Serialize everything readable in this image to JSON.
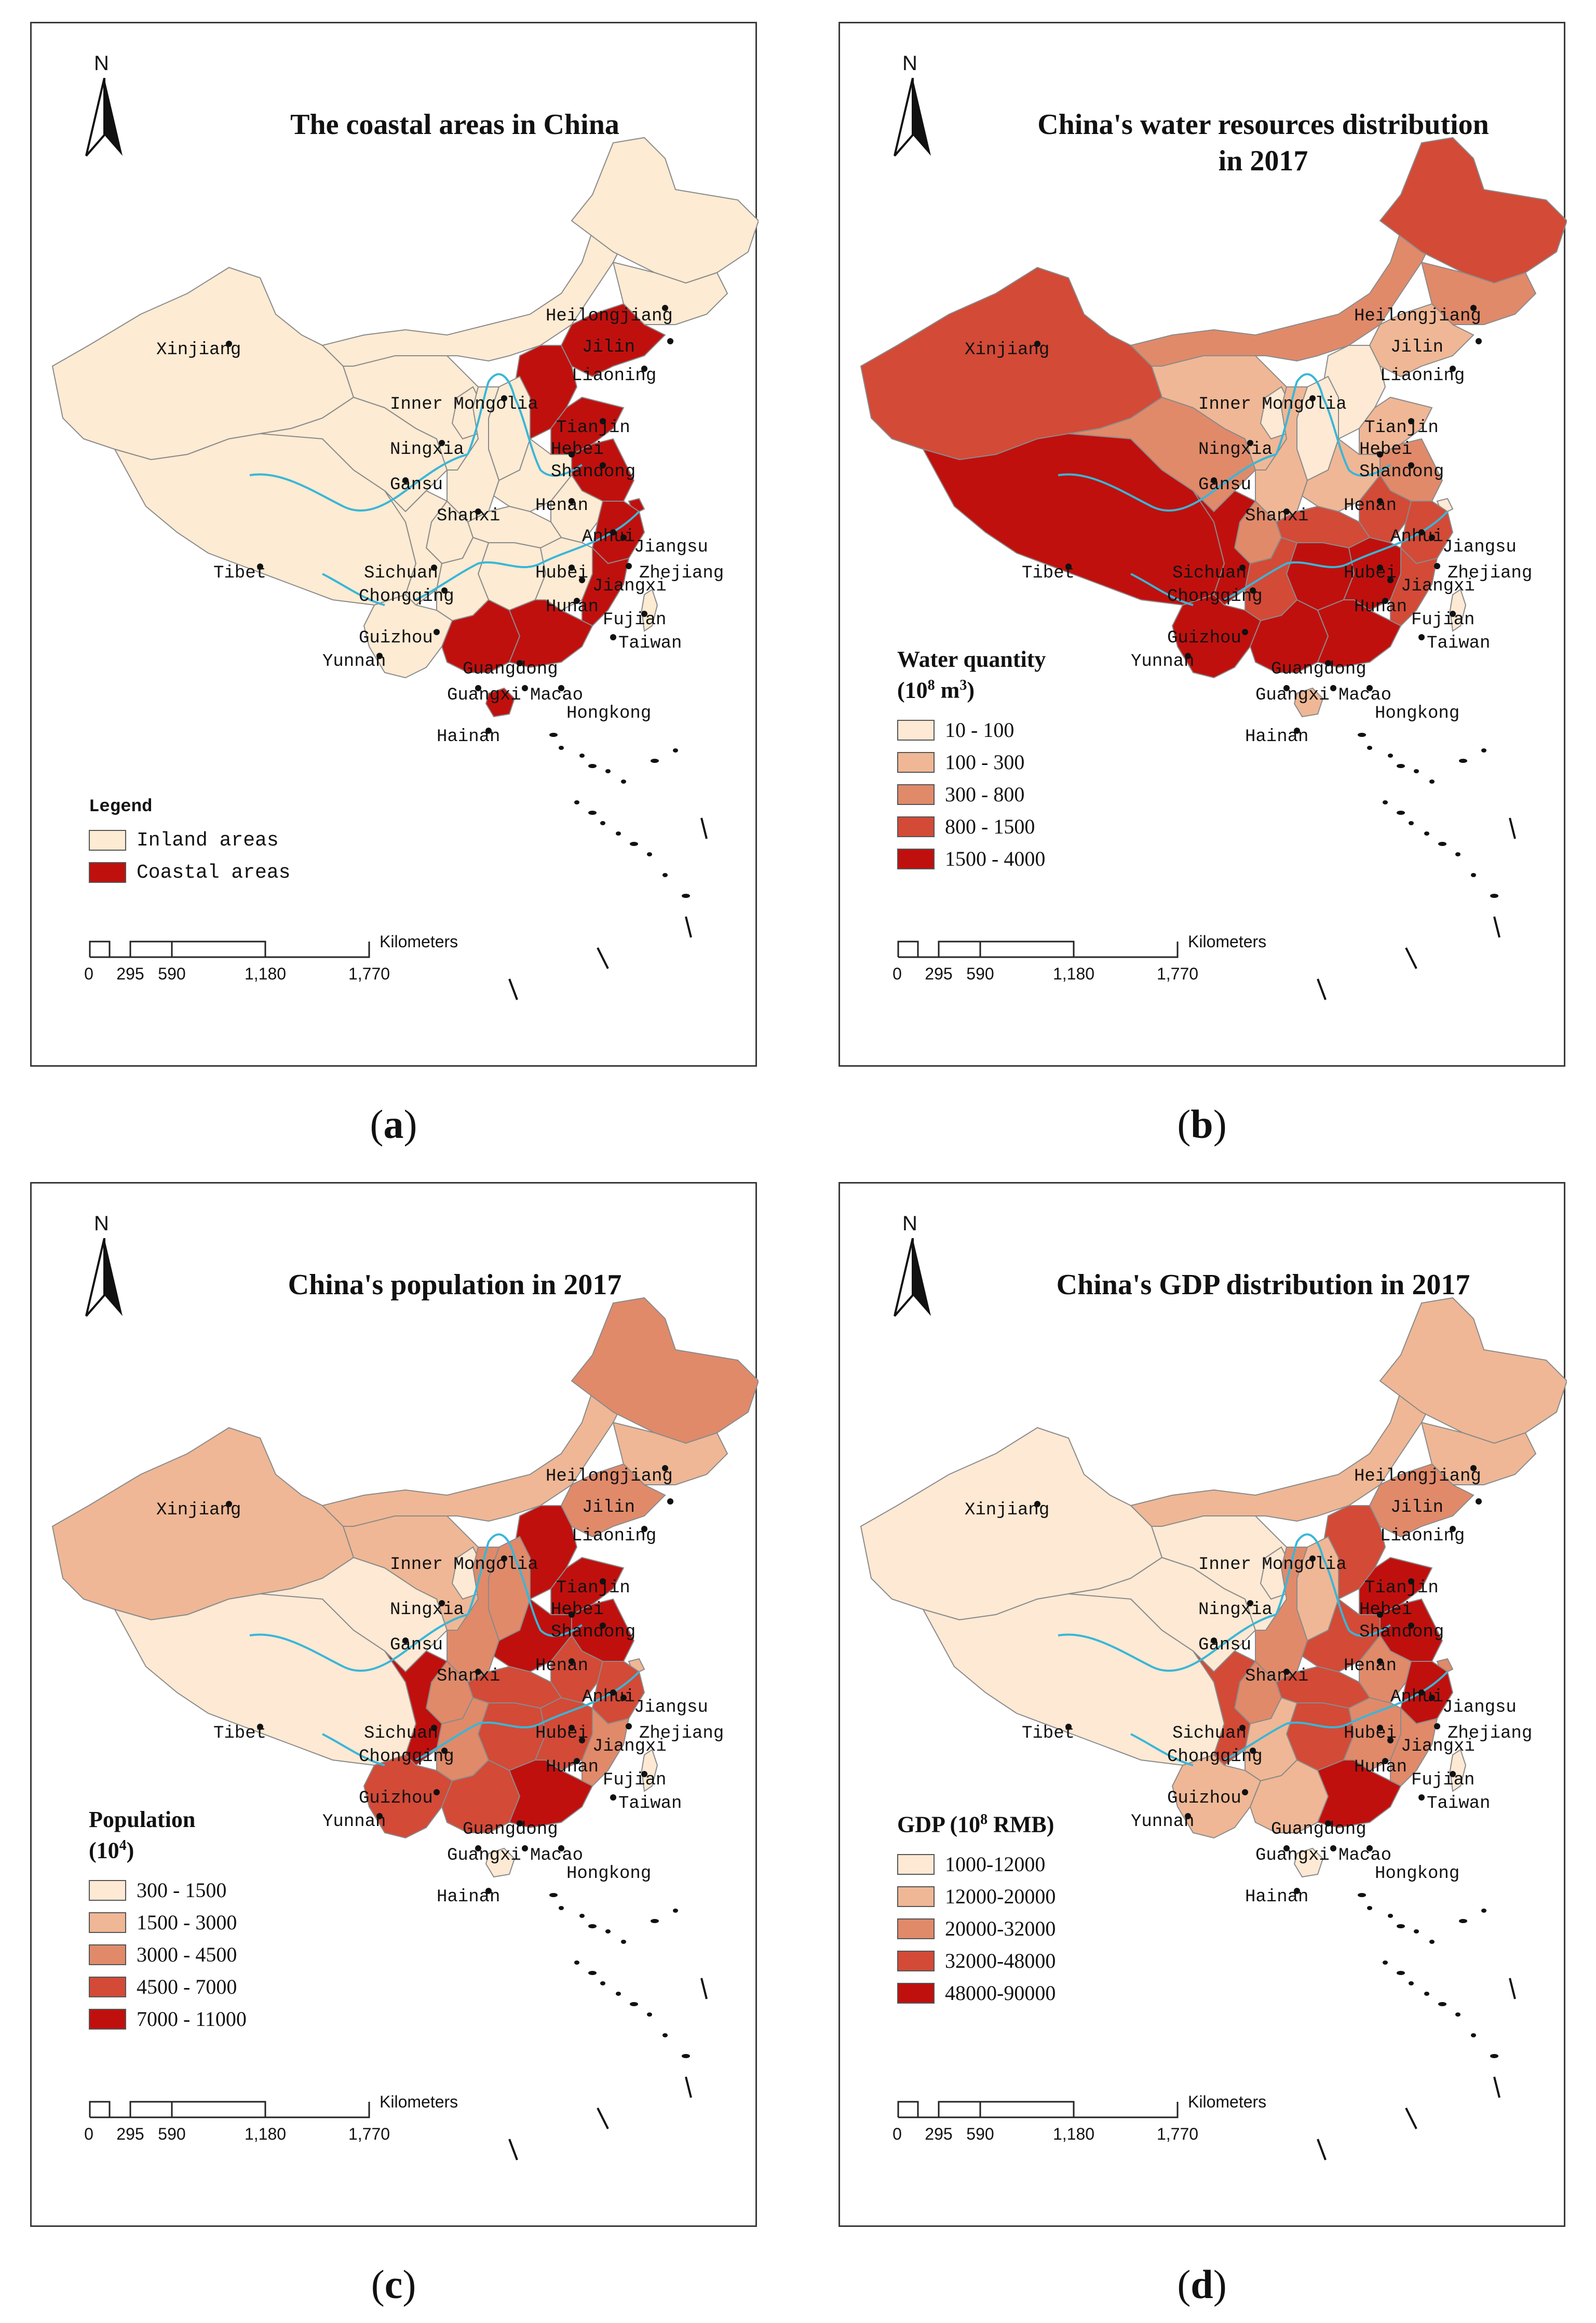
{
  "colors": {
    "inland": "#fdebd3",
    "coastal": "#c0100e",
    "border": "#8a8a8a",
    "river": "#39b6d8",
    "scale5": [
      "#fde9d4",
      "#efb795",
      "#e08a6a",
      "#d34a37",
      "#c0100e"
    ]
  },
  "panels": [
    {
      "id": "a",
      "caption": "a",
      "title_lines": [
        "The coastal areas in China"
      ],
      "north_label": "N",
      "legend": {
        "heading": "Legend",
        "unit": "",
        "style": "mono",
        "items": [
          {
            "label": "Inland areas",
            "color": "#fdebd3"
          },
          {
            "label": "Coastal areas",
            "color": "#c0100e"
          }
        ]
      },
      "province_classes": {
        "Xinjiang": 0,
        "Tibet": 0,
        "Inner Mongolia": 0,
        "Heilongjiang": 0,
        "Jilin": 0,
        "Qinghai": 0,
        "Gansu": 0,
        "Ningxia": 0,
        "Shanxi": 0,
        "Shaanxi": 0,
        "Sichuan": 0,
        "Chongqing": 0,
        "Yunnan": 0,
        "Guizhou": 0,
        "Henan": 0,
        "Hubei": 0,
        "Hunan": 0,
        "Jiangxi": 0,
        "Anhui": 0,
        "Liaoning": 1,
        "Hebei": 1,
        "Tianjin": 1,
        "Beijing": 1,
        "Shandong": 1,
        "Jiangsu": 1,
        "Shanghai": 1,
        "Zhejiang": 1,
        "Fujian": 1,
        "Guangdong": 1,
        "Guangxi": 1,
        "Hainan": 1,
        "Taiwan": 0
      }
    },
    {
      "id": "b",
      "caption": "b",
      "title_lines": [
        "China's water resources distribution",
        "in 2017"
      ],
      "north_label": "N",
      "legend": {
        "heading": "Water quantity",
        "unit": "(10",
        "unit_sup": "8",
        "unit_tail": " m",
        "unit_sup2": "3",
        "unit_close": ")",
        "style": "serif",
        "items": [
          {
            "label": "10 - 100"
          },
          {
            "label": "100 - 300"
          },
          {
            "label": "300 - 800"
          },
          {
            "label": "800 - 1500"
          },
          {
            "label": "1500 - 4000"
          }
        ]
      },
      "province_classes": {
        "Xinjiang": 3,
        "Tibet": 4,
        "Inner Mongolia": 2,
        "Heilongjiang": 3,
        "Jilin": 2,
        "Qinghai": 2,
        "Gansu": 1,
        "Ningxia": 0,
        "Shanxi": 0,
        "Shaanxi": 1,
        "Sichuan": 4,
        "Chongqing": 2,
        "Yunnan": 4,
        "Guizhou": 3,
        "Henan": 1,
        "Hubei": 3,
        "Hunan": 4,
        "Jiangxi": 4,
        "Anhui": 3,
        "Liaoning": 1,
        "Hebei": 0,
        "Tianjin": 0,
        "Beijing": 0,
        "Shandong": 1,
        "Jiangsu": 2,
        "Shanghai": 0,
        "Zhejiang": 3,
        "Fujian": 3,
        "Guangdong": 4,
        "Guangxi": 4,
        "Hainan": 1,
        "Taiwan": 0
      }
    },
    {
      "id": "c",
      "caption": "c",
      "title_lines": [
        "China's population in 2017"
      ],
      "north_label": "N",
      "legend": {
        "heading": "Population",
        "unit": "(10",
        "unit_sup": "4",
        "unit_tail": "",
        "unit_sup2": "",
        "unit_close": ")",
        "style": "serif",
        "items": [
          {
            "label": "300 - 1500"
          },
          {
            "label": "1500 - 3000"
          },
          {
            "label": "3000 - 4500"
          },
          {
            "label": "4500 - 7000"
          },
          {
            "label": "7000 - 11000"
          }
        ]
      },
      "province_classes": {
        "Xinjiang": 1,
        "Tibet": 0,
        "Inner Mongolia": 1,
        "Heilongjiang": 2,
        "Jilin": 1,
        "Qinghai": 0,
        "Gansu": 1,
        "Ningxia": 0,
        "Shanxi": 2,
        "Shaanxi": 2,
        "Sichuan": 4,
        "Chongqing": 2,
        "Yunnan": 3,
        "Guizhou": 2,
        "Henan": 4,
        "Hubei": 3,
        "Hunan": 3,
        "Jiangxi": 3,
        "Anhui": 3,
        "Liaoning": 2,
        "Hebei": 4,
        "Tianjin": 1,
        "Beijing": 1,
        "Shandong": 4,
        "Jiangsu": 4,
        "Shanghai": 1,
        "Zhejiang": 3,
        "Fujian": 2,
        "Guangdong": 4,
        "Guangxi": 3,
        "Hainan": 0,
        "Taiwan": 0
      }
    },
    {
      "id": "d",
      "caption": "d",
      "title_lines": [
        "China's GDP distribution in 2017"
      ],
      "north_label": "N",
      "legend": {
        "heading": "GDP (10",
        "heading_sup": "8",
        "heading_tail": " RMB)",
        "unit": "",
        "style": "serif",
        "items": [
          {
            "label": "1000-12000"
          },
          {
            "label": "12000-20000"
          },
          {
            "label": "20000-32000"
          },
          {
            "label": "32000-48000"
          },
          {
            "label": "48000-90000"
          }
        ]
      },
      "province_classes": {
        "Xinjiang": 0,
        "Tibet": 0,
        "Inner Mongolia": 1,
        "Heilongjiang": 1,
        "Jilin": 1,
        "Qinghai": 0,
        "Gansu": 0,
        "Ningxia": 0,
        "Shanxi": 1,
        "Shaanxi": 2,
        "Sichuan": 3,
        "Chongqing": 2,
        "Yunnan": 1,
        "Guizhou": 1,
        "Henan": 3,
        "Hubei": 3,
        "Hunan": 3,
        "Jiangxi": 2,
        "Anhui": 2,
        "Liaoning": 2,
        "Hebei": 3,
        "Tianjin": 2,
        "Beijing": 2,
        "Shandong": 4,
        "Jiangsu": 4,
        "Shanghai": 2,
        "Zhejiang": 4,
        "Fujian": 2,
        "Guangdong": 4,
        "Guangxi": 1,
        "Hainan": 0,
        "Taiwan": 0
      }
    }
  ],
  "province_labels": [
    "Heilongjiang",
    "Jilin",
    "Xinjiang",
    "Liaoning",
    "Inner Mongolia",
    "Tianjin",
    "Ningxia",
    "Hebei",
    "Shandong",
    "Gansu",
    "Henan",
    "Shanxi",
    "Anhui",
    "Jiangsu",
    "Tibet",
    "Sichuan",
    "Hubei",
    "Zhejiang",
    "Chongqing",
    "Jiangxi",
    "Hunan",
    "Fujian",
    "Guizhou",
    "Taiwan",
    "Yunnan",
    "Guangdong",
    "Guangxi",
    "Macao",
    "Hongkong",
    "Hainan"
  ],
  "scale_bar": {
    "ticks": [
      "0",
      "295",
      "590",
      "1,180",
      "1,770"
    ],
    "unit": "Kilometers"
  }
}
